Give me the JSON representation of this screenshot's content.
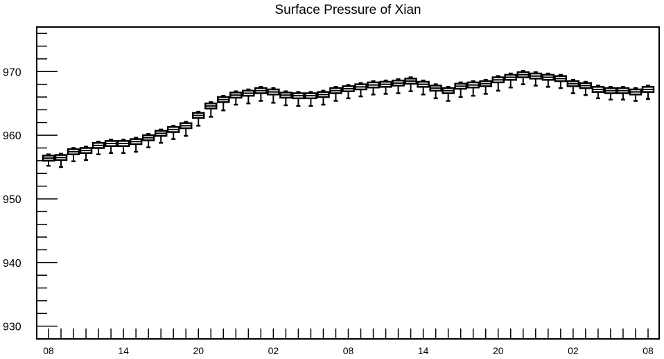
{
  "chart_data": {
    "type": "box",
    "title": "Surface Pressure of Xian",
    "xlabel": "",
    "ylabel": "",
    "ylim": [
      928,
      977
    ],
    "y_ticks": [
      930,
      940,
      950,
      960,
      970
    ],
    "x_tick_labels": [
      "08",
      "14",
      "20",
      "02",
      "08",
      "14",
      "20",
      "02",
      "08"
    ],
    "x_tick_label_steps": [
      0,
      6,
      12,
      18,
      24,
      30,
      36,
      42,
      48
    ],
    "grid": false,
    "legend": "none",
    "series": [
      {
        "median": [
          956.4,
          956.5,
          957.4,
          957.6,
          958.4,
          958.7,
          958.7,
          959.0,
          959.6,
          960.3,
          960.9,
          961.5,
          963.1,
          964.6,
          965.6,
          966.3,
          966.6,
          967.0,
          966.8,
          966.3,
          966.2,
          966.2,
          966.4,
          967.0,
          967.3,
          967.6,
          967.9,
          968.0,
          968.2,
          968.5,
          968.0,
          967.4,
          967.0,
          967.7,
          967.9,
          968.1,
          968.7,
          969.1,
          969.5,
          969.3,
          969.1,
          968.9,
          968.1,
          967.8,
          967.2,
          967.0,
          967.0,
          966.8,
          967.2
        ],
        "q1": [
          956.0,
          956.1,
          957.0,
          957.2,
          958.0,
          958.3,
          958.3,
          958.6,
          959.2,
          959.9,
          960.5,
          961.1,
          962.7,
          964.2,
          965.2,
          965.9,
          966.2,
          966.6,
          966.4,
          965.9,
          965.8,
          965.8,
          966.0,
          966.6,
          966.9,
          967.2,
          967.5,
          967.6,
          967.8,
          968.1,
          967.6,
          967.0,
          966.6,
          967.3,
          967.5,
          967.7,
          968.3,
          968.7,
          969.1,
          968.9,
          968.7,
          968.5,
          967.7,
          967.4,
          966.8,
          966.6,
          966.6,
          966.4,
          966.8
        ],
        "q3": [
          956.8,
          956.9,
          957.8,
          958.0,
          958.8,
          959.1,
          959.1,
          959.4,
          960.0,
          960.7,
          961.3,
          961.9,
          963.5,
          965.0,
          966.0,
          966.7,
          967.0,
          967.4,
          967.2,
          966.7,
          966.6,
          966.6,
          966.8,
          967.4,
          967.7,
          968.0,
          968.3,
          968.4,
          968.6,
          968.9,
          968.4,
          967.8,
          967.4,
          968.1,
          968.3,
          968.5,
          969.1,
          969.5,
          969.9,
          969.7,
          969.5,
          969.3,
          968.5,
          968.2,
          967.6,
          967.4,
          967.4,
          967.2,
          967.6
        ],
        "whisker_low": [
          955.2,
          955.0,
          955.9,
          956.1,
          957.0,
          957.2,
          957.2,
          957.4,
          958.1,
          958.8,
          959.4,
          959.9,
          961.5,
          962.9,
          963.9,
          964.8,
          965.0,
          965.4,
          965.1,
          964.7,
          964.6,
          964.6,
          964.8,
          965.4,
          965.8,
          966.1,
          966.4,
          966.5,
          966.6,
          966.9,
          966.4,
          965.8,
          965.4,
          966.0,
          966.2,
          966.5,
          967.0,
          967.5,
          968.0,
          967.8,
          967.6,
          967.4,
          966.6,
          966.3,
          965.8,
          965.6,
          965.6,
          965.4,
          965.7
        ],
        "whisker_high": [
          957.0,
          957.1,
          958.0,
          958.2,
          959.0,
          959.3,
          959.3,
          959.6,
          960.2,
          960.9,
          961.5,
          962.1,
          963.7,
          965.2,
          966.2,
          966.9,
          967.2,
          967.6,
          967.4,
          966.9,
          966.8,
          966.8,
          967.0,
          967.6,
          967.9,
          968.2,
          968.5,
          968.6,
          968.8,
          969.1,
          968.6,
          968.0,
          967.6,
          968.3,
          968.5,
          968.7,
          969.3,
          969.7,
          970.1,
          969.9,
          969.7,
          969.5,
          968.7,
          968.4,
          967.8,
          967.6,
          967.6,
          967.4,
          967.8
        ]
      }
    ]
  }
}
